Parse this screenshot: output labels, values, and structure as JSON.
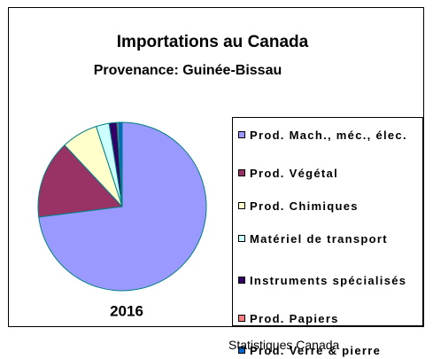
{
  "chart_data": {
    "type": "pie",
    "title": "Importations au Canada",
    "subtitle": "Provenance:  Guinée-Bissau",
    "year": "2016",
    "source": "Statistiques Canada",
    "categories": [
      "Prod. Mach., méc., élec.",
      "Prod. Végétal",
      "Prod. Chimiques",
      "Matériel de transport",
      "Instruments spécialisés",
      "Prod. Papiers",
      "Prod. Verre & pierre"
    ],
    "values": [
      73,
      15,
      7,
      2.5,
      1.5,
      0.3,
      0.7
    ],
    "colors": [
      "#9999ff",
      "#993366",
      "#ffffcc",
      "#ccffff",
      "#330066",
      "#ff8080",
      "#0066cc"
    ]
  }
}
